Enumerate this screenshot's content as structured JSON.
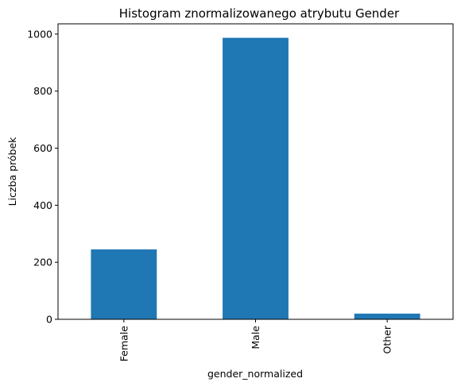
{
  "chart_data": {
    "type": "bar",
    "title": "Histogram znormalizowanego atrybutu Gender",
    "xlabel": "gender_normalized",
    "ylabel": "Liczba próbek",
    "categories": [
      "Female",
      "Male",
      "Other"
    ],
    "values": [
      245,
      987,
      20
    ],
    "ylim": [
      0,
      1036
    ],
    "yticks": [
      0,
      200,
      400,
      600,
      800,
      1000
    ],
    "bar_color": "#1f77b4",
    "grid": false,
    "legend": false
  }
}
